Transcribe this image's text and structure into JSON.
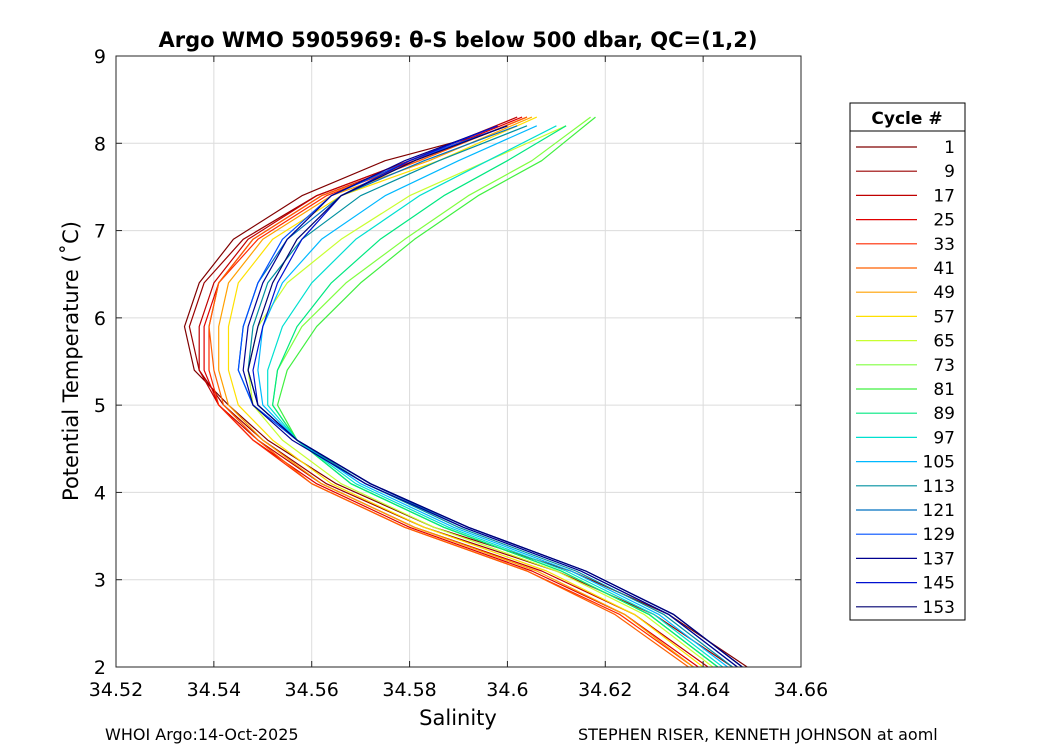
{
  "chart_data": {
    "type": "line",
    "title": "Argo WMO 5905969: θ-S below 500 dbar,  QC=(1,2)",
    "xlabel": "Salinity",
    "ylabel": "Potential Temperature (˚C)",
    "xlim": [
      34.52,
      34.66
    ],
    "ylim": [
      2,
      9
    ],
    "xticks": [
      34.52,
      34.54,
      34.56,
      34.58,
      34.6,
      34.62,
      34.64,
      34.66
    ],
    "xtick_labels": [
      "34.52",
      "34.54",
      "34.56",
      "34.58",
      "34.6",
      "34.62",
      "34.64",
      "34.66"
    ],
    "yticks": [
      2,
      3,
      4,
      5,
      6,
      7,
      8,
      9
    ],
    "ytick_labels": [
      "2",
      "3",
      "4",
      "5",
      "6",
      "7",
      "8",
      "9"
    ],
    "grid": true,
    "legend_title": "Cycle #",
    "legend_position": "outside-right",
    "series": [
      {
        "name": "1",
        "color": "#800000",
        "points": [
          [
            34.649,
            2.0
          ],
          [
            34.633,
            2.6
          ],
          [
            34.613,
            3.1
          ],
          [
            34.585,
            3.6
          ],
          [
            34.565,
            4.1
          ],
          [
            34.551,
            4.6
          ],
          [
            34.543,
            5.0
          ],
          [
            34.536,
            5.4
          ],
          [
            34.534,
            5.9
          ],
          [
            34.537,
            6.4
          ],
          [
            34.544,
            6.9
          ],
          [
            34.558,
            7.4
          ],
          [
            34.575,
            7.8
          ],
          [
            34.595,
            8.1
          ]
        ]
      },
      {
        "name": "9",
        "color": "#9a0000",
        "points": [
          [
            34.646,
            2.0
          ],
          [
            34.63,
            2.6
          ],
          [
            34.61,
            3.1
          ],
          [
            34.583,
            3.6
          ],
          [
            34.563,
            4.1
          ],
          [
            34.55,
            4.6
          ],
          [
            34.542,
            5.0
          ],
          [
            34.537,
            5.4
          ],
          [
            34.535,
            5.9
          ],
          [
            34.538,
            6.4
          ],
          [
            34.546,
            6.9
          ],
          [
            34.561,
            7.4
          ],
          [
            34.58,
            7.8
          ],
          [
            34.6,
            8.2
          ]
        ]
      },
      {
        "name": "17",
        "color": "#c00000",
        "points": [
          [
            34.641,
            2.0
          ],
          [
            34.626,
            2.6
          ],
          [
            34.607,
            3.1
          ],
          [
            34.581,
            3.6
          ],
          [
            34.562,
            4.1
          ],
          [
            34.549,
            4.6
          ],
          [
            34.541,
            5.0
          ],
          [
            34.537,
            5.4
          ],
          [
            34.537,
            5.9
          ],
          [
            34.54,
            6.4
          ],
          [
            34.547,
            6.9
          ],
          [
            34.561,
            7.4
          ],
          [
            34.58,
            7.8
          ],
          [
            34.602,
            8.3
          ]
        ]
      },
      {
        "name": "25",
        "color": "#e00000",
        "points": [
          [
            34.639,
            2.0
          ],
          [
            34.624,
            2.6
          ],
          [
            34.605,
            3.1
          ],
          [
            34.58,
            3.6
          ],
          [
            34.561,
            4.1
          ],
          [
            34.548,
            4.6
          ],
          [
            34.541,
            5.0
          ],
          [
            34.538,
            5.4
          ],
          [
            34.538,
            5.9
          ],
          [
            34.541,
            6.4
          ],
          [
            34.548,
            6.9
          ],
          [
            34.562,
            7.4
          ],
          [
            34.581,
            7.8
          ],
          [
            34.603,
            8.3
          ]
        ]
      },
      {
        "name": "33",
        "color": "#ff2a00",
        "points": [
          [
            34.638,
            2.0
          ],
          [
            34.623,
            2.6
          ],
          [
            34.604,
            3.1
          ],
          [
            34.579,
            3.6
          ],
          [
            34.56,
            4.1
          ],
          [
            34.548,
            4.6
          ],
          [
            34.541,
            5.0
          ],
          [
            34.539,
            5.4
          ],
          [
            34.539,
            5.9
          ],
          [
            34.541,
            6.4
          ],
          [
            34.549,
            6.9
          ],
          [
            34.563,
            7.4
          ],
          [
            34.582,
            7.8
          ],
          [
            34.604,
            8.3
          ]
        ]
      },
      {
        "name": "41",
        "color": "#ff6000",
        "points": [
          [
            34.637,
            2.0
          ],
          [
            34.622,
            2.6
          ],
          [
            34.604,
            3.1
          ],
          [
            34.579,
            3.6
          ],
          [
            34.56,
            4.1
          ],
          [
            34.549,
            4.6
          ],
          [
            34.542,
            5.0
          ],
          [
            34.54,
            5.4
          ],
          [
            34.539,
            5.9
          ],
          [
            34.541,
            6.4
          ],
          [
            34.548,
            6.9
          ],
          [
            34.562,
            7.4
          ],
          [
            34.582,
            7.8
          ],
          [
            34.604,
            8.3
          ]
        ]
      },
      {
        "name": "49",
        "color": "#ffa000",
        "points": [
          [
            34.638,
            2.0
          ],
          [
            34.624,
            2.6
          ],
          [
            34.606,
            3.1
          ],
          [
            34.581,
            3.6
          ],
          [
            34.562,
            4.1
          ],
          [
            34.55,
            4.6
          ],
          [
            34.543,
            5.0
          ],
          [
            34.541,
            5.4
          ],
          [
            34.541,
            5.9
          ],
          [
            34.543,
            6.4
          ],
          [
            34.55,
            6.9
          ],
          [
            34.564,
            7.4
          ],
          [
            34.584,
            7.8
          ],
          [
            34.605,
            8.3
          ]
        ]
      },
      {
        "name": "57",
        "color": "#ffe000",
        "points": [
          [
            34.64,
            2.0
          ],
          [
            34.626,
            2.6
          ],
          [
            34.608,
            3.1
          ],
          [
            34.583,
            3.6
          ],
          [
            34.564,
            4.1
          ],
          [
            34.552,
            4.6
          ],
          [
            34.545,
            5.0
          ],
          [
            34.543,
            5.4
          ],
          [
            34.543,
            5.9
          ],
          [
            34.545,
            6.4
          ],
          [
            34.552,
            6.9
          ],
          [
            34.566,
            7.4
          ],
          [
            34.586,
            7.8
          ],
          [
            34.606,
            8.3
          ]
        ]
      },
      {
        "name": "65",
        "color": "#c8ff30",
        "points": [
          [
            34.642,
            2.0
          ],
          [
            34.628,
            2.6
          ],
          [
            34.61,
            3.1
          ],
          [
            34.585,
            3.6
          ],
          [
            34.566,
            4.1
          ],
          [
            34.554,
            4.6
          ],
          [
            34.548,
            5.0
          ],
          [
            34.547,
            5.4
          ],
          [
            34.549,
            5.9
          ],
          [
            34.555,
            6.4
          ],
          [
            34.566,
            6.9
          ],
          [
            34.58,
            7.4
          ],
          [
            34.596,
            7.8
          ],
          [
            34.612,
            8.2
          ]
        ]
      },
      {
        "name": "73",
        "color": "#80ff40",
        "points": [
          [
            34.643,
            2.0
          ],
          [
            34.629,
            2.6
          ],
          [
            34.611,
            3.1
          ],
          [
            34.587,
            3.6
          ],
          [
            34.568,
            4.1
          ],
          [
            34.557,
            4.6
          ],
          [
            34.552,
            5.0
          ],
          [
            34.553,
            5.4
          ],
          [
            34.558,
            5.9
          ],
          [
            34.567,
            6.4
          ],
          [
            34.579,
            6.9
          ],
          [
            34.592,
            7.4
          ],
          [
            34.605,
            7.8
          ],
          [
            34.617,
            8.3
          ]
        ]
      },
      {
        "name": "81",
        "color": "#40f040",
        "points": [
          [
            34.643,
            2.0
          ],
          [
            34.629,
            2.6
          ],
          [
            34.611,
            3.1
          ],
          [
            34.587,
            3.6
          ],
          [
            34.568,
            4.1
          ],
          [
            34.557,
            4.6
          ],
          [
            34.553,
            5.0
          ],
          [
            34.555,
            5.4
          ],
          [
            34.561,
            5.9
          ],
          [
            34.57,
            6.4
          ],
          [
            34.581,
            6.9
          ],
          [
            34.594,
            7.4
          ],
          [
            34.607,
            7.8
          ],
          [
            34.618,
            8.3
          ]
        ]
      },
      {
        "name": "89",
        "color": "#00e880",
        "points": [
          [
            34.643,
            2.0
          ],
          [
            34.629,
            2.6
          ],
          [
            34.611,
            3.1
          ],
          [
            34.587,
            3.6
          ],
          [
            34.568,
            4.1
          ],
          [
            34.557,
            4.6
          ],
          [
            34.552,
            5.0
          ],
          [
            34.553,
            5.4
          ],
          [
            34.557,
            5.9
          ],
          [
            34.564,
            6.4
          ],
          [
            34.574,
            6.9
          ],
          [
            34.587,
            7.4
          ],
          [
            34.6,
            7.8
          ],
          [
            34.612,
            8.2
          ]
        ]
      },
      {
        "name": "97",
        "color": "#00e0d0",
        "points": [
          [
            34.644,
            2.0
          ],
          [
            34.63,
            2.6
          ],
          [
            34.612,
            3.1
          ],
          [
            34.588,
            3.6
          ],
          [
            34.569,
            4.1
          ],
          [
            34.557,
            4.6
          ],
          [
            34.551,
            5.0
          ],
          [
            34.551,
            5.4
          ],
          [
            34.554,
            5.9
          ],
          [
            34.56,
            6.4
          ],
          [
            34.569,
            6.9
          ],
          [
            34.582,
            7.4
          ],
          [
            34.596,
            7.8
          ],
          [
            34.61,
            8.2
          ]
        ]
      },
      {
        "name": "105",
        "color": "#00b8ff",
        "points": [
          [
            34.645,
            2.0
          ],
          [
            34.631,
            2.6
          ],
          [
            34.613,
            3.1
          ],
          [
            34.589,
            3.6
          ],
          [
            34.57,
            4.1
          ],
          [
            34.557,
            4.6
          ],
          [
            34.55,
            5.0
          ],
          [
            34.549,
            5.4
          ],
          [
            34.55,
            5.9
          ],
          [
            34.554,
            6.4
          ],
          [
            34.562,
            6.9
          ],
          [
            34.575,
            7.4
          ],
          [
            34.59,
            7.8
          ],
          [
            34.606,
            8.2
          ]
        ]
      },
      {
        "name": "113",
        "color": "#0090a0",
        "points": [
          [
            34.646,
            2.0
          ],
          [
            34.632,
            2.6
          ],
          [
            34.614,
            3.1
          ],
          [
            34.59,
            3.6
          ],
          [
            34.571,
            4.1
          ],
          [
            34.557,
            4.6
          ],
          [
            34.549,
            5.0
          ],
          [
            34.547,
            5.4
          ],
          [
            34.548,
            5.9
          ],
          [
            34.551,
            6.4
          ],
          [
            34.558,
            6.9
          ],
          [
            34.57,
            7.4
          ],
          [
            34.586,
            7.8
          ],
          [
            34.604,
            8.2
          ]
        ]
      },
      {
        "name": "121",
        "color": "#0070c0",
        "points": [
          [
            34.647,
            2.0
          ],
          [
            34.633,
            2.6
          ],
          [
            34.615,
            3.1
          ],
          [
            34.591,
            3.6
          ],
          [
            34.572,
            4.1
          ],
          [
            34.557,
            4.6
          ],
          [
            34.548,
            5.0
          ],
          [
            34.545,
            5.4
          ],
          [
            34.546,
            5.9
          ],
          [
            34.549,
            6.4
          ],
          [
            34.555,
            6.9
          ],
          [
            34.566,
            7.4
          ],
          [
            34.583,
            7.8
          ],
          [
            34.602,
            8.2
          ]
        ]
      },
      {
        "name": "129",
        "color": "#0050ff",
        "points": [
          [
            34.648,
            2.0
          ],
          [
            34.634,
            2.6
          ],
          [
            34.616,
            3.1
          ],
          [
            34.592,
            3.6
          ],
          [
            34.572,
            4.1
          ],
          [
            34.557,
            4.6
          ],
          [
            34.548,
            5.0
          ],
          [
            34.545,
            5.4
          ],
          [
            34.546,
            5.9
          ],
          [
            34.549,
            6.4
          ],
          [
            34.554,
            6.9
          ],
          [
            34.564,
            7.4
          ],
          [
            34.58,
            7.8
          ],
          [
            34.6,
            8.2
          ]
        ]
      },
      {
        "name": "137",
        "color": "#000090",
        "points": [
          [
            34.647,
            2.0
          ],
          [
            34.633,
            2.6
          ],
          [
            34.615,
            3.1
          ],
          [
            34.591,
            3.6
          ],
          [
            34.571,
            4.1
          ],
          [
            34.556,
            4.6
          ],
          [
            34.548,
            5.0
          ],
          [
            34.546,
            5.4
          ],
          [
            34.547,
            5.9
          ],
          [
            34.55,
            6.4
          ],
          [
            34.555,
            6.9
          ],
          [
            34.564,
            7.4
          ],
          [
            34.579,
            7.8
          ],
          [
            34.598,
            8.2
          ]
        ]
      },
      {
        "name": "145",
        "color": "#0010d0",
        "points": [
          [
            34.648,
            2.0
          ],
          [
            34.634,
            2.6
          ],
          [
            34.616,
            3.1
          ],
          [
            34.592,
            3.6
          ],
          [
            34.572,
            4.1
          ],
          [
            34.557,
            4.6
          ],
          [
            34.549,
            5.0
          ],
          [
            34.548,
            5.4
          ],
          [
            34.55,
            5.9
          ],
          [
            34.553,
            6.4
          ],
          [
            34.558,
            6.9
          ],
          [
            34.566,
            7.4
          ],
          [
            34.58,
            7.8
          ],
          [
            34.598,
            8.2
          ]
        ]
      },
      {
        "name": "153",
        "color": "#000070",
        "points": [
          [
            34.648,
            2.0
          ],
          [
            34.634,
            2.6
          ],
          [
            34.616,
            3.1
          ],
          [
            34.592,
            3.6
          ],
          [
            34.572,
            4.1
          ],
          [
            34.557,
            4.6
          ],
          [
            34.549,
            5.0
          ],
          [
            34.547,
            5.4
          ],
          [
            34.549,
            5.9
          ],
          [
            34.552,
            6.4
          ],
          [
            34.557,
            6.9
          ],
          [
            34.566,
            7.4
          ],
          [
            34.581,
            7.8
          ],
          [
            34.6,
            8.2
          ]
        ]
      }
    ]
  },
  "footer": {
    "left": "WHOI Argo:14-Oct-2025",
    "right": "STEPHEN RISER, KENNETH JOHNSON at aoml"
  }
}
